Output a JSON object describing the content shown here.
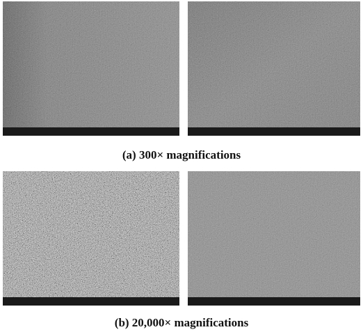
{
  "figure": {
    "panels": [
      {
        "caption": "(a) 300× magnifications"
      },
      {
        "caption": "(b) 20,000× magnifications"
      }
    ]
  }
}
